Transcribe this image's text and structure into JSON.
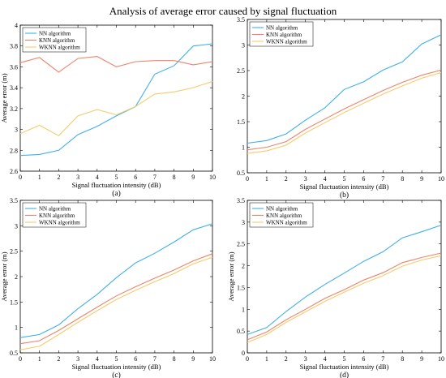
{
  "figure": {
    "title": "Analysis of average error caused by signal fluctuation"
  },
  "colors": [
    "#3fb0e8",
    "#f0826b",
    "#f5cc6a"
  ],
  "chart_data": [
    {
      "type": "line",
      "caption": "(a)",
      "title": "",
      "xlabel": "Signal fluctuation intensity (dB)",
      "ylabel": "Average error (m)",
      "x": [
        0,
        1,
        2,
        3,
        4,
        5,
        6,
        7,
        8,
        9,
        10
      ],
      "xlim": [
        0,
        10
      ],
      "ylim": [
        2.6,
        4.0
      ],
      "yticks": [
        2.6,
        2.8,
        3,
        3.2,
        3.4,
        3.6,
        3.8,
        4
      ],
      "ytick_labels": [
        "2.6",
        "2.8",
        "3",
        "3.2",
        "3.4",
        "3.6",
        "3.8",
        "4"
      ],
      "legend": "top-left",
      "grid": false,
      "series": [
        {
          "name": "NN algorithm",
          "values": [
            2.75,
            2.76,
            2.8,
            2.95,
            3.03,
            3.13,
            3.22,
            3.53,
            3.61,
            3.8,
            3.82
          ]
        },
        {
          "name": "KNN algorithm",
          "values": [
            3.64,
            3.69,
            3.55,
            3.68,
            3.7,
            3.6,
            3.65,
            3.66,
            3.66,
            3.62,
            3.65
          ]
        },
        {
          "name": "WKNN algorithm",
          "values": [
            2.96,
            3.04,
            2.94,
            3.13,
            3.19,
            3.14,
            3.22,
            3.34,
            3.36,
            3.4,
            3.46
          ]
        }
      ]
    },
    {
      "type": "line",
      "caption": "(b)",
      "title": "",
      "xlabel": "Signal fluctuation intensity (dB)",
      "ylabel": "",
      "x": [
        0,
        1,
        2,
        3,
        4,
        5,
        6,
        7,
        8,
        9,
        10
      ],
      "xlim": [
        0,
        10
      ],
      "ylim": [
        0.5,
        3.5
      ],
      "yticks": [
        0.5,
        1,
        1.5,
        2,
        2.5,
        3,
        3.5
      ],
      "ytick_labels": [
        "0.5",
        "1",
        "1.5",
        "2",
        "2.5",
        "3",
        "3.5"
      ],
      "legend": "top-left",
      "grid": false,
      "series": [
        {
          "name": "NN algorithm",
          "values": [
            1.08,
            1.13,
            1.26,
            1.53,
            1.77,
            2.13,
            2.28,
            2.51,
            2.67,
            3.02,
            3.2
          ]
        },
        {
          "name": "KNN algorithm",
          "values": [
            0.95,
            1.0,
            1.11,
            1.35,
            1.55,
            1.75,
            1.93,
            2.11,
            2.27,
            2.41,
            2.51
          ]
        },
        {
          "name": "WKNN algorithm",
          "values": [
            0.88,
            0.93,
            1.04,
            1.28,
            1.48,
            1.68,
            1.86,
            2.04,
            2.2,
            2.35,
            2.46
          ]
        }
      ]
    },
    {
      "type": "line",
      "caption": "(c)",
      "title": "",
      "xlabel": "Signal fluctuation intensity (dB)",
      "ylabel": "Average error (m)",
      "x": [
        0,
        1,
        2,
        3,
        4,
        5,
        6,
        7,
        8,
        9,
        10
      ],
      "xlim": [
        0,
        10
      ],
      "ylim": [
        0.5,
        3.5
      ],
      "yticks": [
        0.5,
        1,
        1.5,
        2,
        2.5,
        3,
        3.5
      ],
      "ytick_labels": [
        "0.5",
        "1",
        "1.5",
        "2",
        "2.5",
        "3",
        "3.5"
      ],
      "legend": "top-left",
      "grid": false,
      "series": [
        {
          "name": "NN algorithm",
          "values": [
            0.8,
            0.86,
            1.05,
            1.37,
            1.65,
            1.98,
            2.27,
            2.46,
            2.68,
            2.92,
            3.04
          ]
        },
        {
          "name": "KNN algorithm",
          "values": [
            0.68,
            0.74,
            0.94,
            1.17,
            1.4,
            1.62,
            1.8,
            1.97,
            2.13,
            2.31,
            2.45
          ]
        },
        {
          "name": "WKNN algorithm",
          "values": [
            0.56,
            0.63,
            0.86,
            1.1,
            1.33,
            1.55,
            1.73,
            1.9,
            2.06,
            2.25,
            2.38
          ]
        }
      ]
    },
    {
      "type": "line",
      "caption": "(d)",
      "title": "",
      "xlabel": "Signal fluctuation intensity (dB)",
      "ylabel": "Average error (m)",
      "x": [
        0,
        1,
        2,
        3,
        4,
        5,
        6,
        7,
        8,
        9,
        10
      ],
      "xlim": [
        0,
        10
      ],
      "ylim": [
        0,
        3.5
      ],
      "yticks": [
        0,
        0.5,
        1,
        1.5,
        2,
        2.5,
        3,
        3.5
      ],
      "ytick_labels": [
        "0",
        "0.5",
        "1",
        "1.5",
        "2",
        "2.5",
        "3",
        "3.5"
      ],
      "legend": "top-left",
      "grid": false,
      "series": [
        {
          "name": "NN algorithm",
          "values": [
            0.42,
            0.58,
            0.95,
            1.28,
            1.57,
            1.83,
            2.1,
            2.32,
            2.64,
            2.78,
            2.93
          ]
        },
        {
          "name": "KNN algorithm",
          "values": [
            0.3,
            0.48,
            0.76,
            1.0,
            1.25,
            1.45,
            1.67,
            1.84,
            2.07,
            2.19,
            2.29
          ]
        },
        {
          "name": "WKNN algorithm",
          "values": [
            0.24,
            0.42,
            0.7,
            0.94,
            1.18,
            1.39,
            1.6,
            1.77,
            1.99,
            2.13,
            2.23
          ]
        }
      ]
    }
  ]
}
